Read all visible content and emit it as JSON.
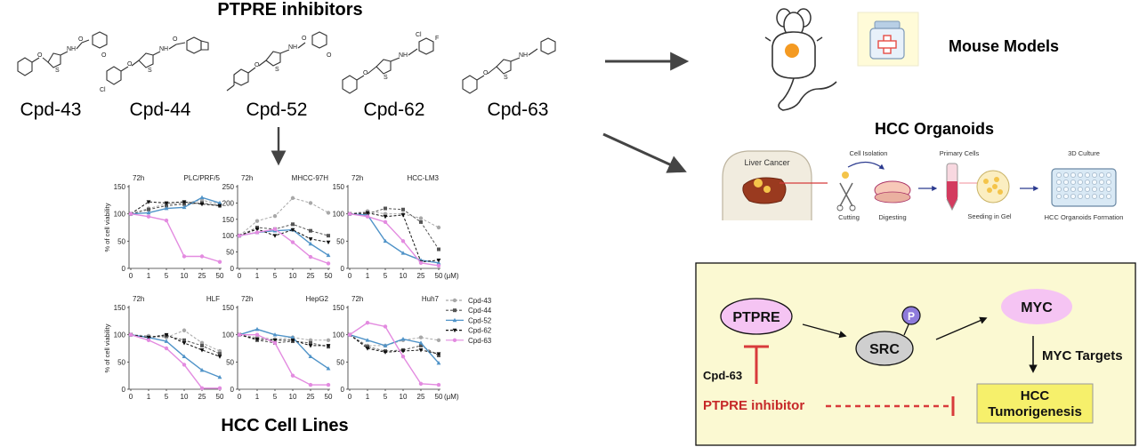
{
  "inhibitors": {
    "title": "PTPRE inhibitors",
    "compounds": [
      "Cpd-43",
      "Cpd-44",
      "Cpd-52",
      "Cpd-62",
      "Cpd-63"
    ]
  },
  "cell_lines": {
    "title": "HCC Cell Lines"
  },
  "models": {
    "mouse_title": "Mouse Models",
    "organoid_title": "HCC Organoids",
    "organoid_steps": {
      "liver_cancer": "Liver Cancer",
      "cell_isolation": "Cell Isolation",
      "cutting": "Cutting",
      "digesting": "Digesting",
      "primary_cells": "Primary Cells",
      "seeding": "Seeding in Gel",
      "culture": "3D Culture",
      "formation": "HCC Organoids Formation"
    }
  },
  "mechanism": {
    "ptpre": "PTPRE",
    "src": "SRC",
    "phospho": "P",
    "myc": "MYC",
    "myc_targets": "MYC Targets",
    "hcc": "HCC",
    "tumorigenesis": "Tumorigenesis",
    "cpd": "Cpd-63",
    "inhibitor": "PTPRE inhibitor"
  },
  "chart_data": [
    {
      "type": "line",
      "title": "PLC/PRF/5",
      "time_label": "72h",
      "ylabel": "% of cell viability",
      "xlabel": "",
      "categories": [
        "0",
        "1",
        "5",
        "10",
        "25",
        "50"
      ],
      "ylim": [
        0,
        150
      ],
      "yticks": [
        0,
        50,
        100,
        150
      ],
      "series": [
        {
          "name": "Cpd-43",
          "values": [
            100,
            110,
            118,
            120,
            125,
            118
          ]
        },
        {
          "name": "Cpd-44",
          "values": [
            100,
            108,
            115,
            118,
            120,
            115
          ]
        },
        {
          "name": "Cpd-52",
          "values": [
            100,
            102,
            110,
            112,
            130,
            120
          ]
        },
        {
          "name": "Cpd-62",
          "values": [
            100,
            122,
            120,
            122,
            118,
            115
          ]
        },
        {
          "name": "Cpd-63",
          "values": [
            100,
            95,
            88,
            22,
            22,
            12
          ]
        }
      ]
    },
    {
      "type": "line",
      "title": "MHCC-97H",
      "time_label": "72h",
      "ylabel": "",
      "xlabel": "",
      "categories": [
        "0",
        "1",
        "5",
        "10",
        "25",
        "50"
      ],
      "ylim": [
        0,
        250
      ],
      "yticks": [
        0,
        50,
        100,
        150,
        200,
        250
      ],
      "series": [
        {
          "name": "Cpd-43",
          "values": [
            100,
            145,
            160,
            215,
            200,
            170
          ]
        },
        {
          "name": "Cpd-44",
          "values": [
            100,
            125,
            120,
            135,
            115,
            100
          ]
        },
        {
          "name": "Cpd-52",
          "values": [
            100,
            110,
            115,
            118,
            75,
            40
          ]
        },
        {
          "name": "Cpd-62",
          "values": [
            100,
            120,
            100,
            118,
            90,
            80
          ]
        },
        {
          "name": "Cpd-63",
          "values": [
            100,
            110,
            120,
            80,
            35,
            15
          ]
        }
      ]
    },
    {
      "type": "line",
      "title": "HCC-LM3",
      "time_label": "72h",
      "ylabel": "",
      "xlabel": "(μM)",
      "categories": [
        "0",
        "1",
        "5",
        "10",
        "25",
        "50"
      ],
      "ylim": [
        0,
        150
      ],
      "yticks": [
        0,
        50,
        100,
        150
      ],
      "series": [
        {
          "name": "Cpd-43",
          "values": [
            100,
            105,
            100,
            100,
            92,
            75
          ]
        },
        {
          "name": "Cpd-44",
          "values": [
            100,
            100,
            110,
            108,
            85,
            35
          ]
        },
        {
          "name": "Cpd-52",
          "values": [
            100,
            98,
            50,
            28,
            15,
            10
          ]
        },
        {
          "name": "Cpd-62",
          "values": [
            100,
            102,
            95,
            98,
            12,
            15
          ]
        },
        {
          "name": "Cpd-63",
          "values": [
            100,
            95,
            85,
            50,
            10,
            5
          ]
        }
      ]
    },
    {
      "type": "line",
      "title": "HLF",
      "time_label": "72h",
      "ylabel": "% of cell viability",
      "xlabel": "",
      "categories": [
        "0",
        "1",
        "5",
        "10",
        "25",
        "50"
      ],
      "ylim": [
        0,
        150
      ],
      "yticks": [
        0,
        50,
        100,
        150
      ],
      "series": [
        {
          "name": "Cpd-43",
          "values": [
            100,
            98,
            95,
            108,
            85,
            70
          ]
        },
        {
          "name": "Cpd-44",
          "values": [
            100,
            95,
            98,
            90,
            80,
            65
          ]
        },
        {
          "name": "Cpd-52",
          "values": [
            100,
            95,
            88,
            60,
            35,
            22
          ]
        },
        {
          "name": "Cpd-62",
          "values": [
            100,
            95,
            100,
            85,
            72,
            60
          ]
        },
        {
          "name": "Cpd-63",
          "values": [
            100,
            90,
            75,
            45,
            2,
            2
          ]
        }
      ]
    },
    {
      "type": "line",
      "title": "HepG2",
      "time_label": "72h",
      "ylabel": "",
      "xlabel": "",
      "categories": [
        "0",
        "1",
        "5",
        "10",
        "25",
        "50"
      ],
      "ylim": [
        0,
        150
      ],
      "yticks": [
        0,
        50,
        100,
        150
      ],
      "series": [
        {
          "name": "Cpd-43",
          "values": [
            100,
            95,
            92,
            95,
            90,
            90
          ]
        },
        {
          "name": "Cpd-44",
          "values": [
            100,
            90,
            85,
            88,
            85,
            78
          ]
        },
        {
          "name": "Cpd-52",
          "values": [
            100,
            110,
            100,
            95,
            60,
            38
          ]
        },
        {
          "name": "Cpd-62",
          "values": [
            100,
            92,
            90,
            90,
            80,
            80
          ]
        },
        {
          "name": "Cpd-63",
          "values": [
            100,
            100,
            85,
            25,
            8,
            8
          ]
        }
      ]
    },
    {
      "type": "line",
      "title": "Huh7",
      "time_label": "72h",
      "ylabel": "",
      "xlabel": "(μM)",
      "categories": [
        "0",
        "1",
        "5",
        "10",
        "25",
        "50"
      ],
      "ylim": [
        0,
        150
      ],
      "yticks": [
        0,
        50,
        100,
        150
      ],
      "series": [
        {
          "name": "Cpd-43",
          "values": [
            100,
            80,
            80,
            90,
            95,
            90
          ]
        },
        {
          "name": "Cpd-44",
          "values": [
            100,
            78,
            70,
            72,
            80,
            62
          ]
        },
        {
          "name": "Cpd-52",
          "values": [
            100,
            90,
            80,
            92,
            85,
            48
          ]
        },
        {
          "name": "Cpd-62",
          "values": [
            100,
            75,
            68,
            70,
            72,
            65
          ]
        },
        {
          "name": "Cpd-63",
          "values": [
            100,
            122,
            115,
            60,
            10,
            8
          ]
        }
      ]
    }
  ],
  "legend": {
    "entries": [
      "Cpd-43",
      "Cpd-44",
      "Cpd-52",
      "Cpd-62",
      "Cpd-63"
    ]
  },
  "colors": {
    "cpd43": "#a8a8a8",
    "cpd44": "#555555",
    "cpd52": "#4f93c8",
    "cpd62": "#111111",
    "cpd63": "#e38be0",
    "mech_bg": "#fbf9d2",
    "hcc_box": "#f6f06b",
    "ptpre": "#f5c4f3",
    "myc": "#f5c4f3",
    "src": "#cfcfcf",
    "phospho": "#8e7bdb",
    "inhibit": "#d83b3b"
  }
}
